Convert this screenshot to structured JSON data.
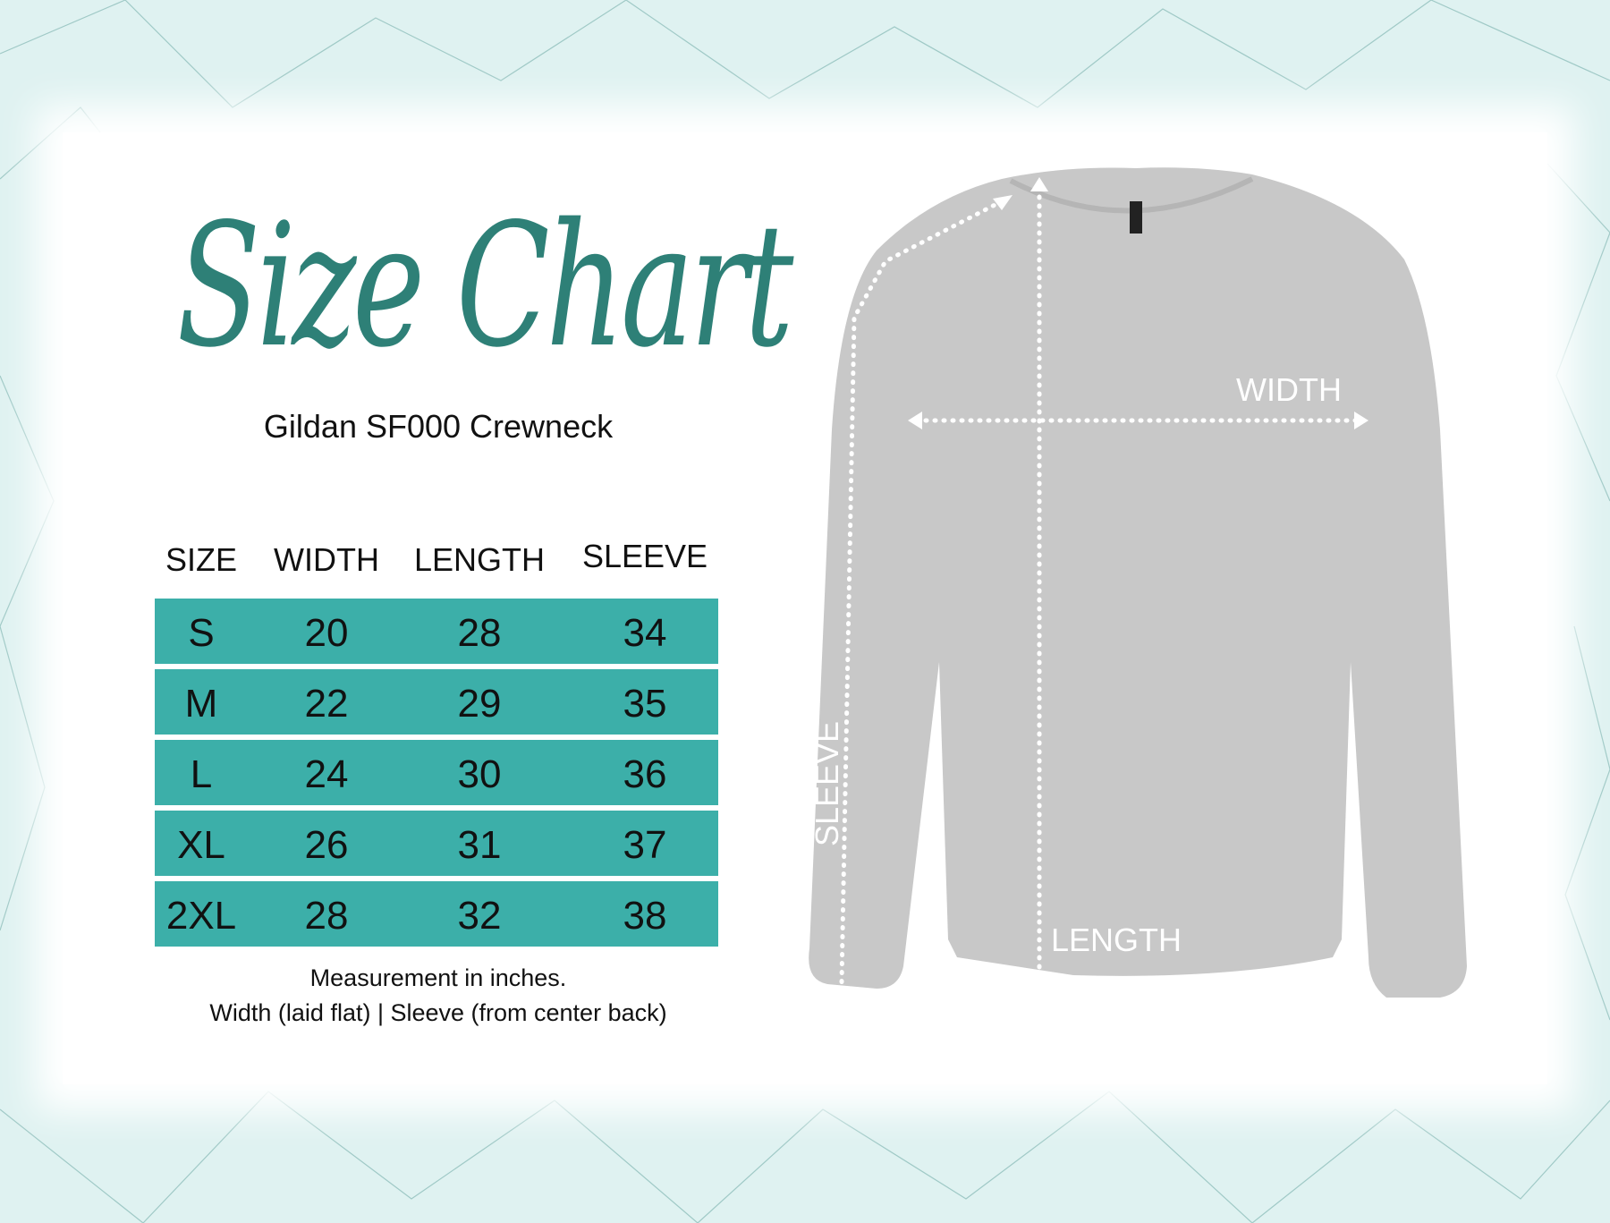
{
  "title": "Size Chart",
  "subtitle": "Gildan SF000 Crewneck",
  "table": {
    "headers": [
      "SIZE",
      "WIDTH",
      "LENGTH",
      "SLEEVE"
    ],
    "rows": [
      [
        "S",
        "20",
        "28",
        "34"
      ],
      [
        "M",
        "22",
        "29",
        "35"
      ],
      [
        "L",
        "24",
        "30",
        "36"
      ],
      [
        "XL",
        "26",
        "31",
        "37"
      ],
      [
        "2XL",
        "28",
        "32",
        "38"
      ]
    ]
  },
  "notes": [
    "Measurement in inches.",
    "Width (laid flat)  |  Sleeve (from center back)"
  ],
  "diagram_labels": {
    "width": "WIDTH",
    "length": "LENGTH",
    "sleeve": "SLEEVE"
  },
  "colors": {
    "teal_row": "#3cafa9",
    "title": "#2e8077",
    "background": "#dff2f1",
    "sweater": "#c8c8c8"
  }
}
